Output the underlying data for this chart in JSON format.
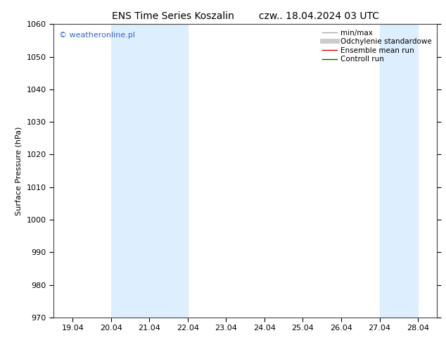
{
  "title_left": "ENS Time Series Koszalin",
  "title_right": "czw.. 18.04.2024 03 UTC",
  "ylabel": "Surface Pressure (hPa)",
  "ylim": [
    970,
    1060
  ],
  "yticks": [
    970,
    980,
    990,
    1000,
    1010,
    1020,
    1030,
    1040,
    1050,
    1060
  ],
  "xtick_labels": [
    "19.04",
    "20.04",
    "21.04",
    "22.04",
    "23.04",
    "24.04",
    "25.04",
    "26.04",
    "27.04",
    "28.04"
  ],
  "xtick_positions": [
    1,
    2,
    3,
    4,
    5,
    6,
    7,
    8,
    9,
    10
  ],
  "xlim": [
    0.5,
    10.5
  ],
  "shaded_bands": [
    {
      "xmin": 2.0,
      "xmax": 4.0,
      "color": "#ddeeff"
    },
    {
      "xmin": 9.0,
      "xmax": 10.0,
      "color": "#ddeeff"
    }
  ],
  "watermark": "© weatheronline.pl",
  "legend_items": [
    {
      "label": "min/max",
      "color": "#aaaaaa",
      "lw": 1.0,
      "style": "-"
    },
    {
      "label": "Odchylenie standardowe",
      "color": "#cccccc",
      "lw": 5,
      "style": "-"
    },
    {
      "label": "Ensemble mean run",
      "color": "#cc0000",
      "lw": 1.0,
      "style": "-"
    },
    {
      "label": "Controll run",
      "color": "#006600",
      "lw": 1.0,
      "style": "-"
    }
  ],
  "bg_color": "#ffffff",
  "plot_bg_color": "#ffffff",
  "title_fontsize": 10,
  "axis_label_fontsize": 8,
  "tick_fontsize": 8,
  "legend_fontsize": 7.5,
  "watermark_color": "#3366cc",
  "watermark_fontsize": 8
}
